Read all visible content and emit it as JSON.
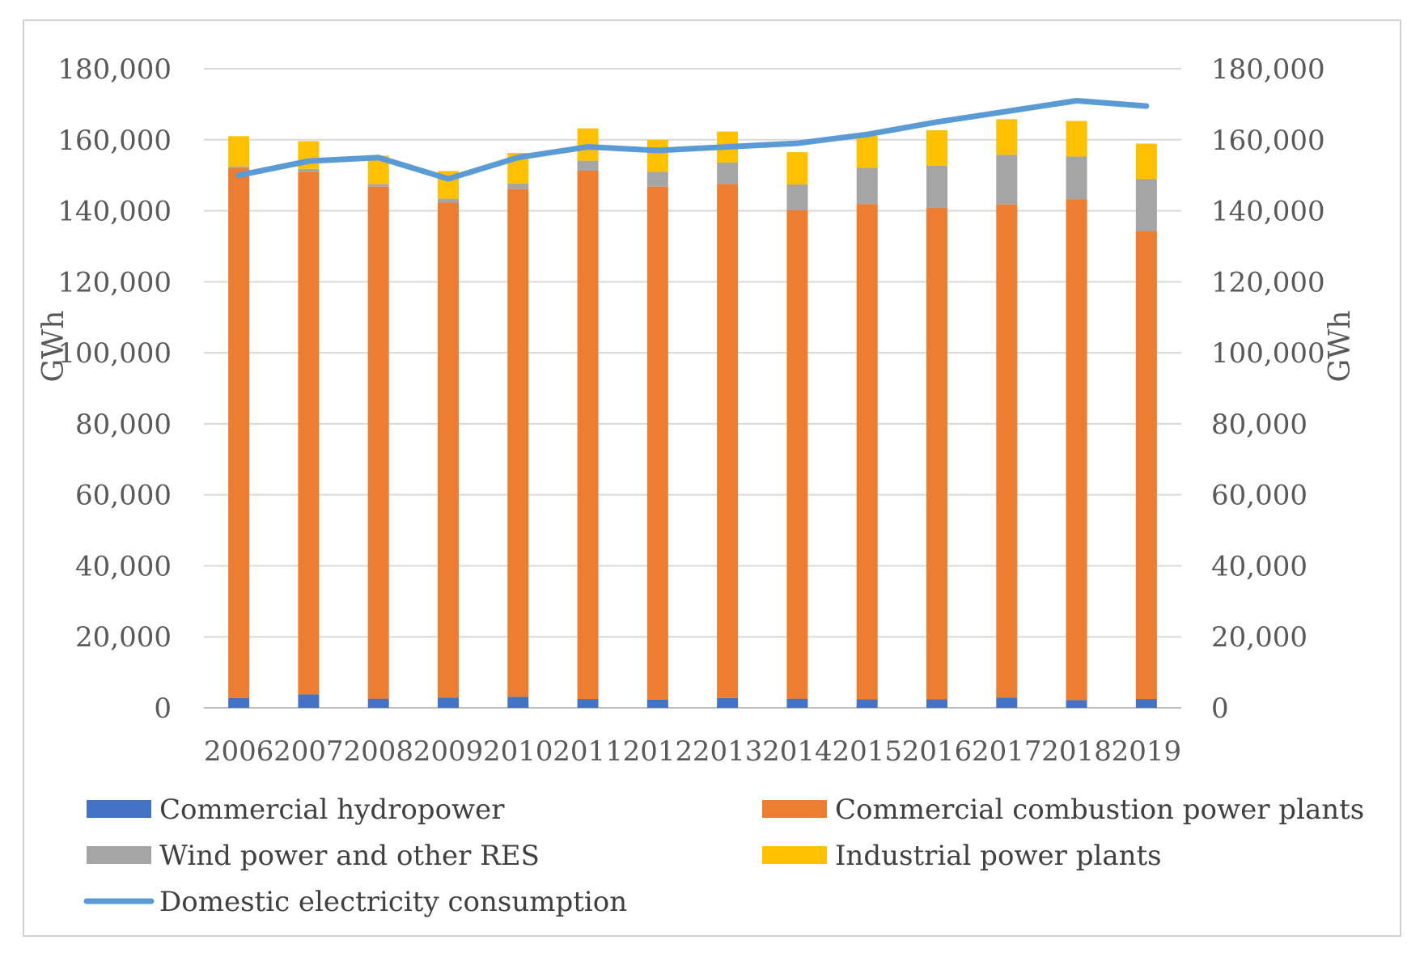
{
  "chart_data": {
    "type": "bar",
    "stacked": true,
    "title": "",
    "categories": [
      "2006",
      "2007",
      "2008",
      "2009",
      "2010",
      "2011",
      "2012",
      "2013",
      "2014",
      "2015",
      "2016",
      "2017",
      "2018",
      "2019"
    ],
    "series": [
      {
        "name": "Commercial hydropower",
        "kind": "bar",
        "color": "#4472C4",
        "values": [
          2800,
          3800,
          2600,
          2900,
          3100,
          2500,
          2300,
          2800,
          2600,
          2400,
          2400,
          2900,
          2200,
          2500
        ]
      },
      {
        "name": "Commercial combustion power plants",
        "kind": "bar",
        "color": "#ED7D31",
        "values": [
          149200,
          147200,
          144200,
          139400,
          143000,
          148800,
          144500,
          144800,
          137600,
          139500,
          138500,
          138900,
          141100,
          131800
        ]
      },
      {
        "name": "Wind power and other RES",
        "kind": "bar",
        "color": "#A5A5A5",
        "values": [
          500,
          800,
          700,
          1100,
          1600,
          2800,
          4200,
          6000,
          7200,
          10200,
          11800,
          14000,
          12000,
          14600
        ]
      },
      {
        "name": "Industrial power plants",
        "kind": "bar",
        "color": "#FFC000",
        "values": [
          8500,
          7800,
          8000,
          7800,
          8600,
          9100,
          9000,
          8700,
          9100,
          9000,
          10000,
          10000,
          10000,
          10000
        ]
      },
      {
        "name": "Domestic electricity consumption",
        "kind": "line",
        "color": "#5B9BD5",
        "values": [
          150000,
          154000,
          155000,
          149000,
          155000,
          158000,
          157000,
          158000,
          159000,
          161500,
          165000,
          168000,
          171000,
          169500
        ]
      }
    ],
    "yticks": [
      "0",
      "20,000",
      "40,000",
      "60,000",
      "80,000",
      "100,000",
      "120,000",
      "140,000",
      "160,000",
      "180,000"
    ],
    "y_right_ticks": [
      "0",
      "20,000",
      "40,000",
      "60,000",
      "80,000",
      "100,000",
      "120,000",
      "140,000",
      "160,000",
      "180,000"
    ],
    "ylabel": "GWh",
    "ylabel_right": "GWh",
    "xlabel": "",
    "ylim": [
      0,
      180000
    ],
    "grid": true,
    "legend_position": "bottom"
  }
}
